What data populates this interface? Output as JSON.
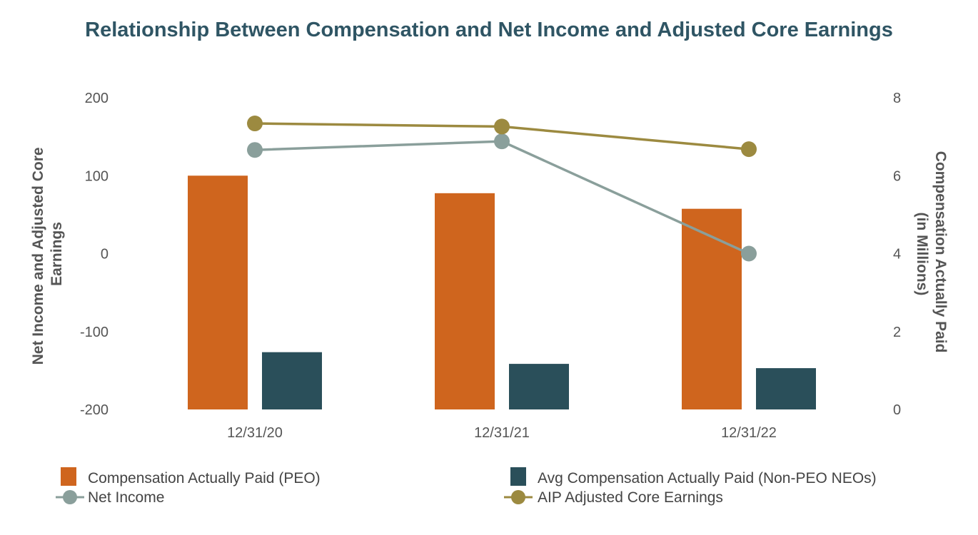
{
  "chart_data": {
    "type": "bar",
    "title": "Relationship Between Compensation and Net Income and Adjusted Core Earnings",
    "categories": [
      "12/31/20",
      "12/31/21",
      "12/31/22"
    ],
    "y_left": {
      "label_line1": "Net Income and Adjusted Core",
      "label_line2": "Earnings",
      "lim": [
        -200,
        200
      ],
      "ticks": [
        200,
        100,
        0,
        -100,
        -200
      ],
      "tick_labels": [
        "200",
        "100",
        "0",
        "-100",
        "-200"
      ]
    },
    "y_right": {
      "label_line1": "Compensation Actually Paid",
      "label_line2": "(in Millions)",
      "lim": [
        0,
        8
      ],
      "ticks": [
        8,
        6,
        4,
        2,
        0
      ],
      "tick_labels": [
        "8",
        "6",
        "4",
        "2",
        "0"
      ]
    },
    "bar_series": [
      {
        "name": "Compensation Actually Paid (PEO)",
        "axis": "right",
        "color": "#cf651e",
        "values": [
          6.0,
          5.55,
          5.15
        ]
      },
      {
        "name": "Avg Compensation Actually Paid (Non-PEO NEOs)",
        "axis": "right",
        "color": "#2a4f5a",
        "values": [
          1.47,
          1.17,
          1.06
        ]
      }
    ],
    "line_series": [
      {
        "name": "Net Income",
        "axis": "left",
        "color": "#8a9f9b",
        "values": [
          133,
          144,
          0
        ]
      },
      {
        "name": "AIP Adjusted Core Earnings",
        "axis": "left",
        "color": "#9c8a40",
        "values": [
          167,
          163,
          134
        ]
      }
    ]
  }
}
